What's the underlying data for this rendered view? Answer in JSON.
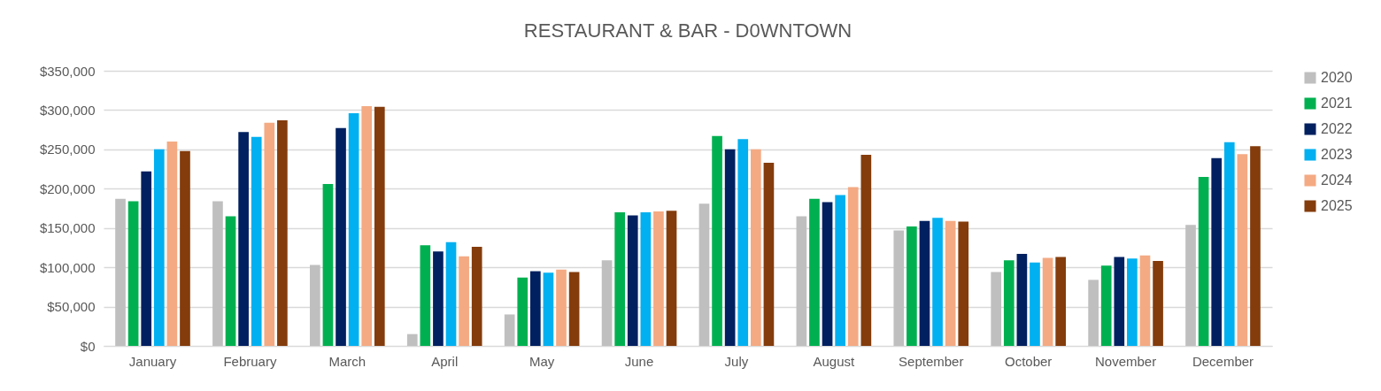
{
  "chart_data": {
    "type": "bar",
    "title": "RESTAURANT & BAR - D0WNTOWN",
    "categories": [
      "January",
      "February",
      "March",
      "April",
      "May",
      "June",
      "July",
      "August",
      "September",
      "October",
      "November",
      "December"
    ],
    "series": [
      {
        "name": "2020",
        "color": "#bfbfbf",
        "values": [
          187000,
          184000,
          103000,
          15000,
          40000,
          109000,
          181000,
          165000,
          147000,
          94000,
          84000,
          154000
        ]
      },
      {
        "name": "2021",
        "color": "#00b050",
        "values": [
          184000,
          165000,
          206000,
          128000,
          87000,
          170000,
          267000,
          187000,
          152000,
          109000,
          102000,
          215000
        ]
      },
      {
        "name": "2022",
        "color": "#002060",
        "values": [
          222000,
          272000,
          277000,
          120000,
          95000,
          166000,
          250000,
          183000,
          159000,
          117000,
          113000,
          239000
        ]
      },
      {
        "name": "2023",
        "color": "#00b0f0",
        "values": [
          250000,
          266000,
          296000,
          132000,
          93000,
          170000,
          263000,
          192000,
          163000,
          106000,
          111000,
          259000
        ]
      },
      {
        "name": "2024",
        "color": "#f4aa83",
        "values": [
          260000,
          284000,
          305000,
          114000,
          97000,
          171000,
          250000,
          202000,
          159000,
          112000,
          115000,
          244000
        ]
      },
      {
        "name": "2025",
        "color": "#843c0c",
        "values": [
          248000,
          287000,
          304000,
          126000,
          94000,
          172000,
          233000,
          243000,
          158000,
          113000,
          108000,
          254000
        ]
      }
    ],
    "ylim": [
      0,
      350000
    ],
    "yticks": [
      {
        "value": 0,
        "label": "$0"
      },
      {
        "value": 50000,
        "label": "$50,000"
      },
      {
        "value": 100000,
        "label": "$100,000"
      },
      {
        "value": 150000,
        "label": "$150,000"
      },
      {
        "value": 200000,
        "label": "$200,000"
      },
      {
        "value": 250000,
        "label": "$250,000"
      },
      {
        "value": 300000,
        "label": "$300,000"
      },
      {
        "value": 350000,
        "label": "$350,000"
      }
    ],
    "grid": "y",
    "legend": "right"
  }
}
